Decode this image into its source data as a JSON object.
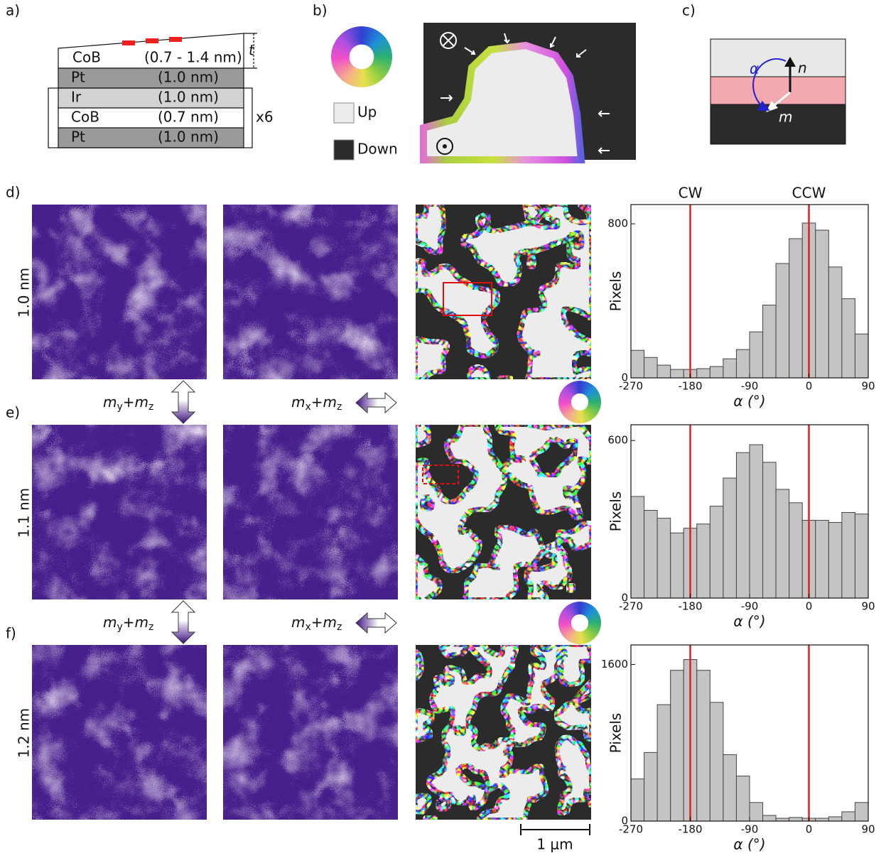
{
  "panel_labels": [
    "a)",
    "b)",
    "c)",
    "d)",
    "e)",
    "f)"
  ],
  "layer_stack": {
    "wedge": {
      "material": "CoB",
      "thickness": "(0.7 - 1.4 nm)"
    },
    "thickness_symbol": "t",
    "layers": [
      {
        "material": "Pt",
        "thickness": "(1.0 nm)"
      },
      {
        "material": "Ir",
        "thickness": "(1.0 nm)"
      },
      {
        "material": "CoB",
        "thickness": "(0.7 nm)"
      },
      {
        "material": "Pt",
        "thickness": "(1.0 nm)"
      }
    ],
    "repeat": "x6"
  },
  "domain_legend": {
    "up": "Up",
    "down": "Down"
  },
  "angle_diagram": {
    "alpha": "α",
    "n": "n",
    "m": "m"
  },
  "row_labels": [
    "1.0 nm",
    "1.1 nm",
    "1.2 nm"
  ],
  "contrast_labels": {
    "vertical": [
      "m",
      "y",
      "+",
      "m",
      "z"
    ],
    "horizontal": [
      "m",
      "x",
      "+",
      "m",
      "z"
    ]
  },
  "scale_bar": "1 μm",
  "chart_data": [
    {
      "type": "histogram",
      "bins": [
        -270,
        -250,
        -230,
        -210,
        -190,
        -170,
        -150,
        -130,
        -110,
        -90,
        -70,
        -50,
        -30,
        -10,
        10,
        30,
        50,
        70,
        90
      ],
      "counts": [
        143,
        106,
        66,
        44,
        44,
        48,
        59,
        99,
        147,
        239,
        378,
        594,
        723,
        804,
        767,
        576,
        411,
        228
      ],
      "color": "#c4c4c4",
      "xlim": [
        -270,
        90
      ],
      "ylim": [
        0,
        900
      ],
      "xticks": [
        -270,
        -180,
        -90,
        0,
        90
      ],
      "yticks": [
        0,
        800
      ],
      "xlabel": "α (°)",
      "ylabel": "Pixels",
      "vlines": [
        -180,
        0
      ],
      "vline_color": "#e02020",
      "vline_labels": [
        "CW",
        "CCW"
      ]
    },
    {
      "type": "histogram",
      "bins": [
        -270,
        -250,
        -230,
        -210,
        -190,
        -170,
        -150,
        -130,
        -110,
        -90,
        -70,
        -50,
        -30,
        -10,
        10,
        30,
        50,
        70,
        90
      ],
      "counts": [
        387,
        334,
        304,
        248,
        266,
        282,
        350,
        457,
        554,
        584,
        517,
        414,
        363,
        296,
        296,
        288,
        326,
        320
      ],
      "color": "#c4c4c4",
      "xlim": [
        -270,
        90
      ],
      "ylim": [
        0,
        660
      ],
      "xticks": [
        -270,
        -180,
        -90,
        0,
        90
      ],
      "yticks": [
        0,
        600
      ],
      "xlabel": "α (°)",
      "ylabel": "Pixels",
      "vlines": [
        -180,
        0
      ],
      "vline_color": "#e02020"
    },
    {
      "type": "histogram",
      "bins": [
        -270,
        -250,
        -230,
        -210,
        -190,
        -170,
        -150,
        -130,
        -110,
        -90,
        -70,
        -50,
        -30,
        -10,
        10,
        30,
        50,
        70,
        90
      ],
      "counts": [
        431,
        701,
        1190,
        1541,
        1651,
        1541,
        1213,
        679,
        460,
        190,
        58,
        29,
        37,
        29,
        29,
        44,
        95,
        190
      ],
      "color": "#c4c4c4",
      "xlim": [
        -270,
        90
      ],
      "ylim": [
        0,
        1800
      ],
      "xticks": [
        -270,
        -180,
        -90,
        0,
        90
      ],
      "yticks": [
        0,
        1600
      ],
      "xlabel": "α (°)",
      "ylabel": "Pixels",
      "vlines": [
        -180,
        0
      ],
      "vline_color": "#e02020"
    }
  ]
}
